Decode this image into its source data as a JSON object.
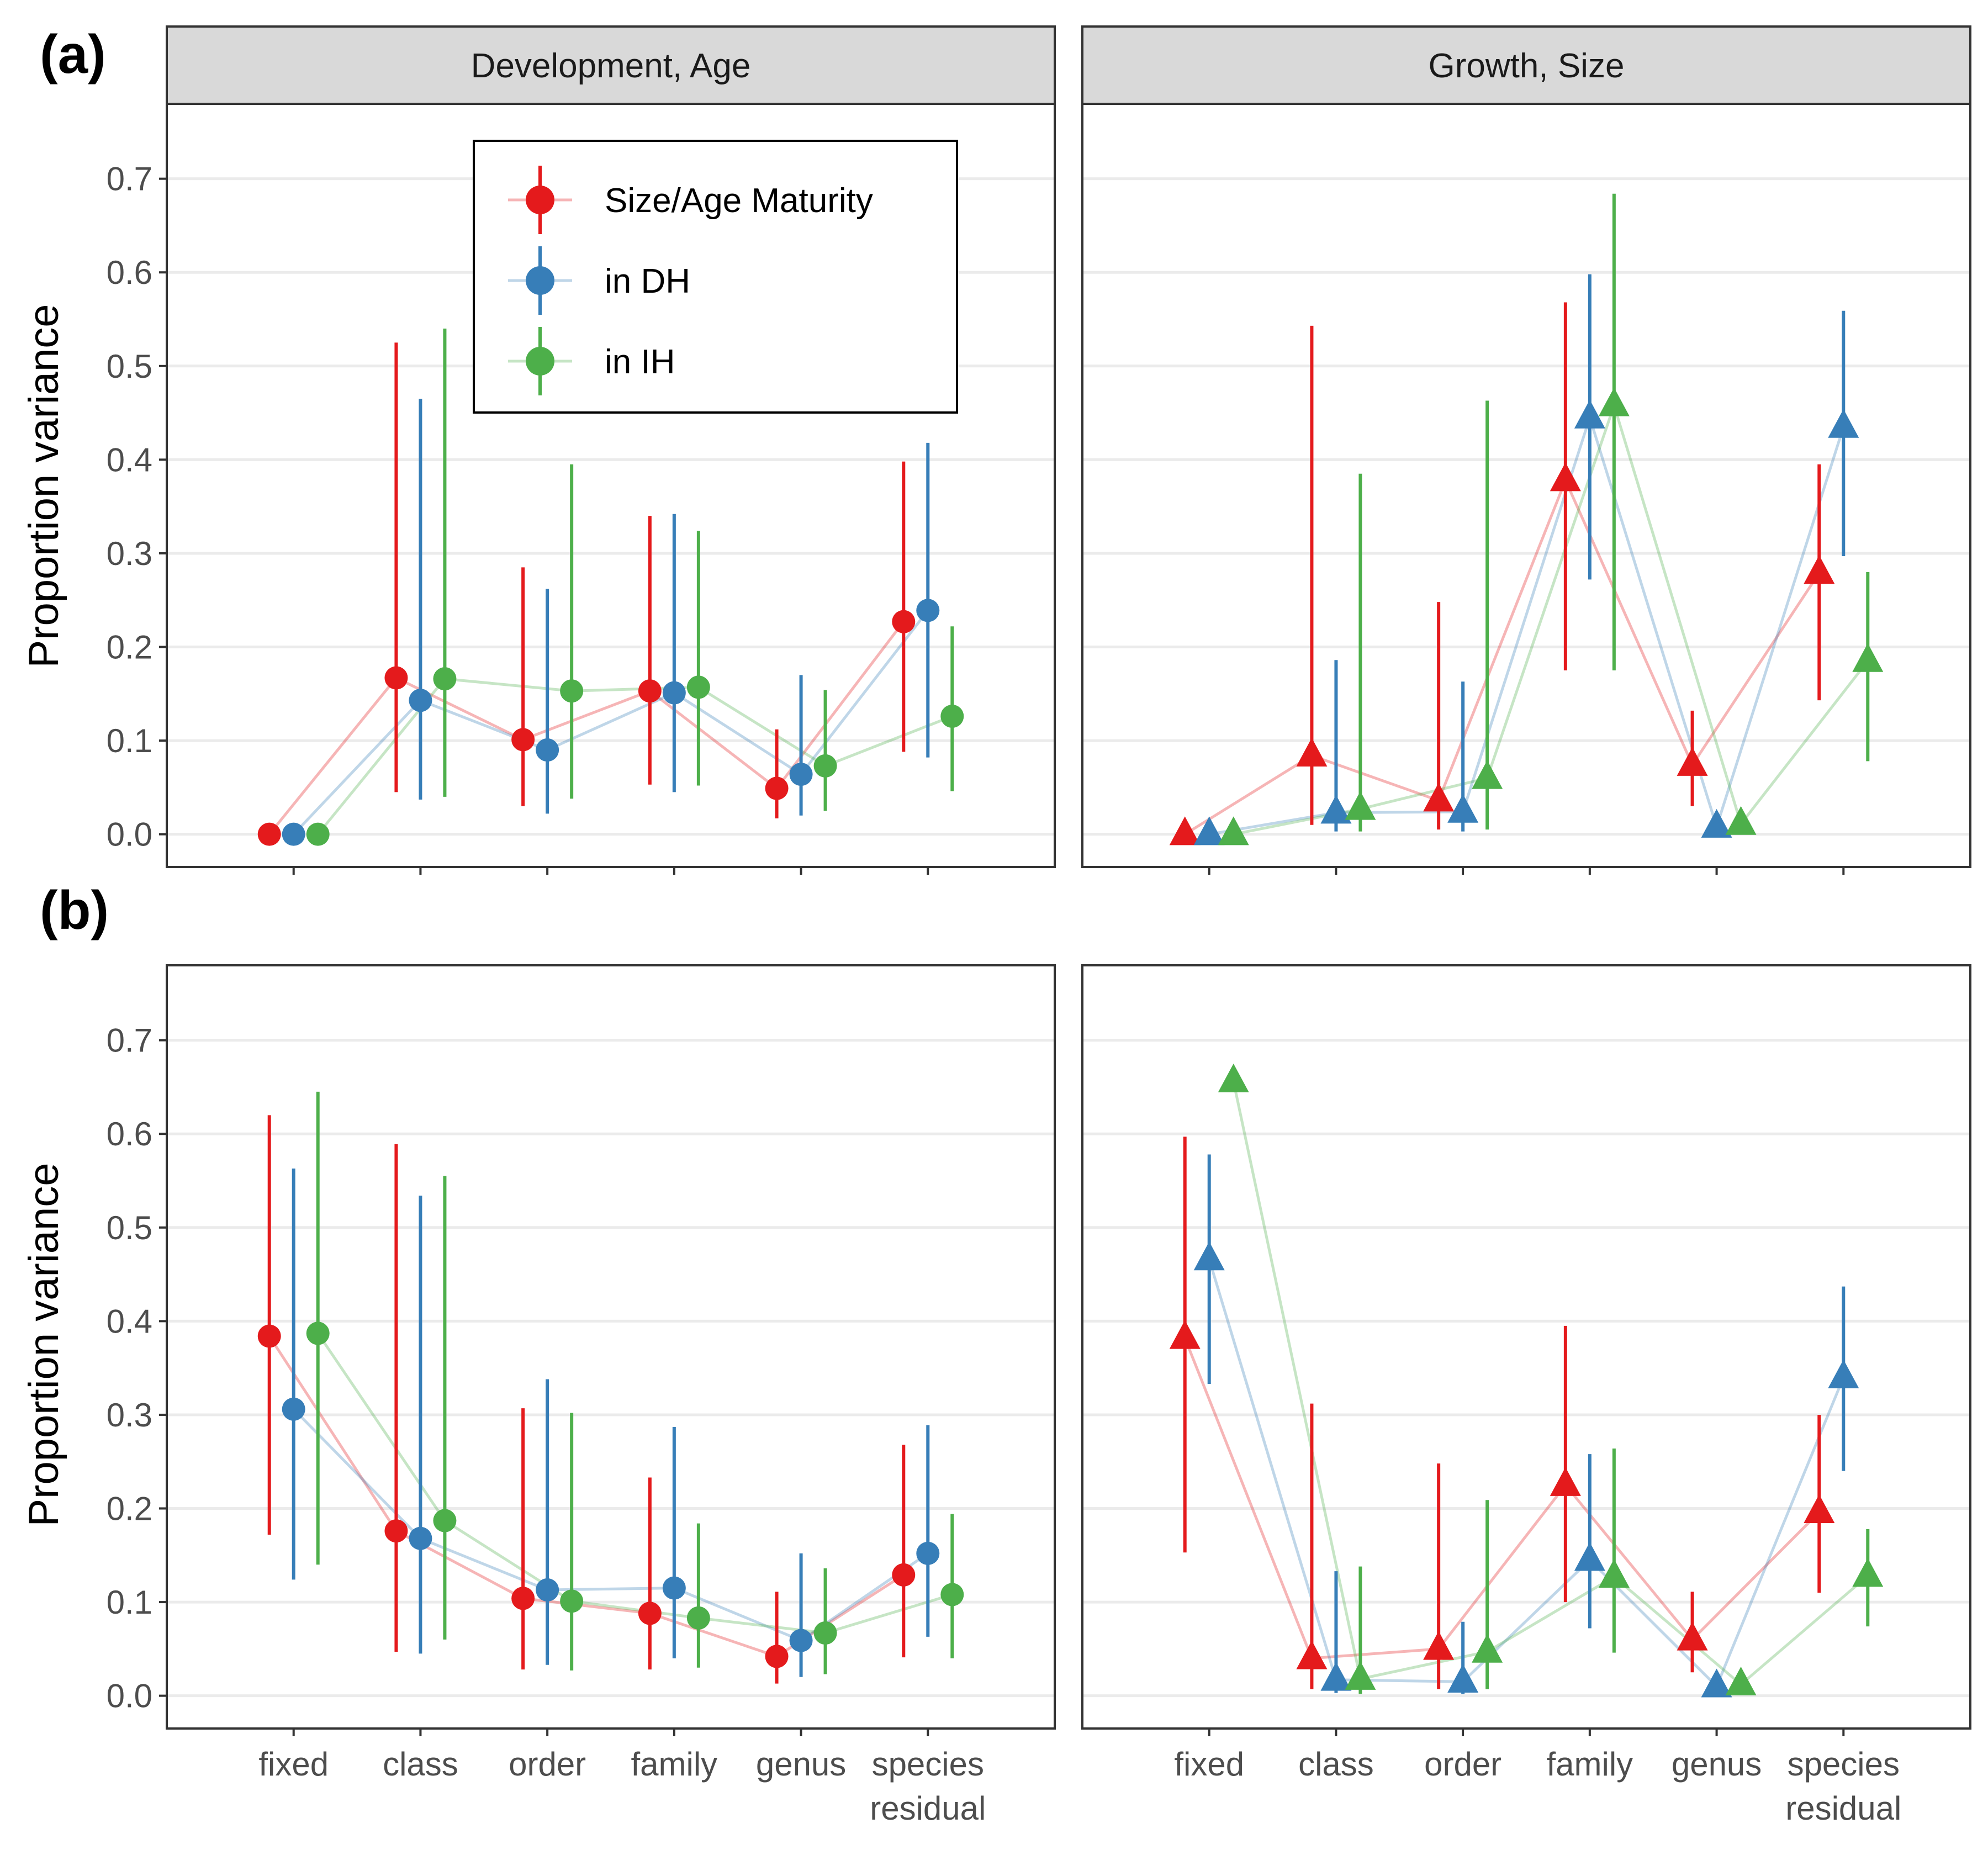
{
  "panel_labels": [
    "(a)",
    "(b)"
  ],
  "strips": [
    "Development, Age",
    "Growth, Size"
  ],
  "y_axis_title": "Proportion variance",
  "legend": [
    {
      "label": "Size/Age Maturity",
      "color": "#e41a1c"
    },
    {
      "label": "in DH",
      "color": "#377eb8"
    },
    {
      "label": "in IH",
      "color": "#4daf4a"
    }
  ],
  "colors": {
    "Size/Age Maturity": "#e41a1c",
    "in DH": "#377eb8",
    "in IH": "#4daf4a",
    "strip_fill": "#d9d9d9",
    "grid": "#ebebeb",
    "frame": "#333333"
  },
  "chart_data": [
    {
      "type": "line",
      "row": "(a)",
      "facet": "Development, Age",
      "marker": "circle",
      "categories": [
        "fixed",
        "class",
        "order",
        "family",
        "genus",
        "species residual"
      ],
      "ylim": [
        -0.035,
        0.78
      ],
      "yticks": [
        0.0,
        0.1,
        0.2,
        0.3,
        0.4,
        0.5,
        0.6,
        0.7
      ],
      "grid": true,
      "series": [
        {
          "name": "Size/Age Maturity",
          "values": [
            0.0,
            0.167,
            0.101,
            0.153,
            0.049,
            0.227
          ],
          "lower": [
            0.0,
            0.045,
            0.03,
            0.053,
            0.017,
            0.088
          ],
          "upper": [
            0.0,
            0.525,
            0.285,
            0.34,
            0.112,
            0.398
          ]
        },
        {
          "name": "in DH",
          "values": [
            0.0,
            0.143,
            0.09,
            0.151,
            0.064,
            0.239
          ],
          "lower": [
            0.0,
            0.037,
            0.022,
            0.045,
            0.02,
            0.082
          ],
          "upper": [
            0.0,
            0.465,
            0.262,
            0.342,
            0.17,
            0.418
          ]
        },
        {
          "name": "in IH",
          "values": [
            0.0,
            0.166,
            0.153,
            0.157,
            0.073,
            0.126
          ],
          "lower": [
            0.0,
            0.04,
            0.038,
            0.052,
            0.025,
            0.046
          ],
          "upper": [
            0.0,
            0.54,
            0.395,
            0.324,
            0.154,
            0.222
          ]
        }
      ]
    },
    {
      "type": "line",
      "row": "(a)",
      "facet": "Growth, Size",
      "marker": "triangle",
      "categories": [
        "fixed",
        "class",
        "order",
        "family",
        "genus",
        "species residual"
      ],
      "ylim": [
        -0.035,
        0.78
      ],
      "yticks": [
        0.0,
        0.1,
        0.2,
        0.3,
        0.4,
        0.5,
        0.6,
        0.7
      ],
      "grid": true,
      "series": [
        {
          "name": "Size/Age Maturity",
          "values": [
            0.0,
            0.084,
            0.036,
            0.378,
            0.074,
            0.279
          ],
          "lower": [
            0.0,
            0.01,
            0.005,
            0.175,
            0.03,
            0.143
          ],
          "upper": [
            0.0,
            0.543,
            0.248,
            0.568,
            0.132,
            0.395
          ]
        },
        {
          "name": "in DH",
          "values": [
            0.0,
            0.023,
            0.024,
            0.445,
            0.008,
            0.435
          ],
          "lower": [
            0.0,
            0.003,
            0.003,
            0.272,
            0.0,
            0.297
          ],
          "upper": [
            0.0,
            0.186,
            0.163,
            0.598,
            0.0,
            0.559
          ]
        },
        {
          "name": "in IH",
          "values": [
            0.0,
            0.027,
            0.06,
            0.458,
            0.011,
            0.185
          ],
          "lower": [
            0.0,
            0.003,
            0.005,
            0.175,
            0.0,
            0.078
          ],
          "upper": [
            0.0,
            0.385,
            0.463,
            0.684,
            0.0,
            0.28
          ]
        }
      ]
    },
    {
      "type": "line",
      "row": "(b)",
      "facet": "Development, Age",
      "marker": "circle",
      "categories": [
        "fixed",
        "class",
        "order",
        "family",
        "genus",
        "species residual"
      ],
      "ylim": [
        -0.035,
        0.78
      ],
      "yticks": [
        0.0,
        0.1,
        0.2,
        0.3,
        0.4,
        0.5,
        0.6,
        0.7
      ],
      "grid": true,
      "series": [
        {
          "name": "Size/Age Maturity",
          "values": [
            0.384,
            0.176,
            0.104,
            0.088,
            0.042,
            0.129
          ],
          "lower": [
            0.172,
            0.047,
            0.028,
            0.028,
            0.013,
            0.041
          ],
          "upper": [
            0.62,
            0.589,
            0.307,
            0.233,
            0.111,
            0.268
          ]
        },
        {
          "name": "in DH",
          "values": [
            0.306,
            0.168,
            0.113,
            0.115,
            0.059,
            0.152
          ],
          "lower": [
            0.124,
            0.045,
            0.033,
            0.04,
            0.02,
            0.063
          ],
          "upper": [
            0.563,
            0.534,
            0.338,
            0.287,
            0.152,
            0.289
          ]
        },
        {
          "name": "in IH",
          "values": [
            0.387,
            0.187,
            0.101,
            0.083,
            0.067,
            0.108
          ],
          "lower": [
            0.14,
            0.06,
            0.027,
            0.03,
            0.023,
            0.04
          ],
          "upper": [
            0.645,
            0.555,
            0.302,
            0.184,
            0.136,
            0.194
          ]
        }
      ]
    },
    {
      "type": "line",
      "row": "(b)",
      "facet": "Growth, Size",
      "marker": "triangle",
      "categories": [
        "fixed",
        "class",
        "order",
        "family",
        "genus",
        "species residual"
      ],
      "ylim": [
        -0.035,
        0.78
      ],
      "yticks": [
        0.0,
        0.1,
        0.2,
        0.3,
        0.4,
        0.5,
        0.6,
        0.7
      ],
      "grid": true,
      "series": [
        {
          "name": "Size/Age Maturity",
          "values": [
            0.382,
            0.04,
            0.05,
            0.225,
            0.06,
            0.196
          ],
          "lower": [
            0.153,
            0.007,
            0.007,
            0.1,
            0.025,
            0.11
          ],
          "upper": [
            0.597,
            0.312,
            0.248,
            0.395,
            0.111,
            0.3
          ]
        },
        {
          "name": "in DH",
          "values": [
            0.466,
            0.017,
            0.015,
            0.145,
            0.01,
            0.34
          ],
          "lower": [
            0.333,
            0.003,
            0.002,
            0.072,
            0.0,
            0.24
          ],
          "upper": [
            0.578,
            0.133,
            0.079,
            0.258,
            0.0,
            0.437
          ]
        },
        {
          "name": "in IH",
          "values": [
            0.656,
            0.018,
            0.047,
            0.127,
            0.012,
            0.128
          ],
          "lower": [
            0.0,
            0.002,
            0.007,
            0.046,
            0.0,
            0.074
          ],
          "upper": [
            0.0,
            0.138,
            0.209,
            0.264,
            0.0,
            0.178
          ]
        }
      ]
    }
  ]
}
